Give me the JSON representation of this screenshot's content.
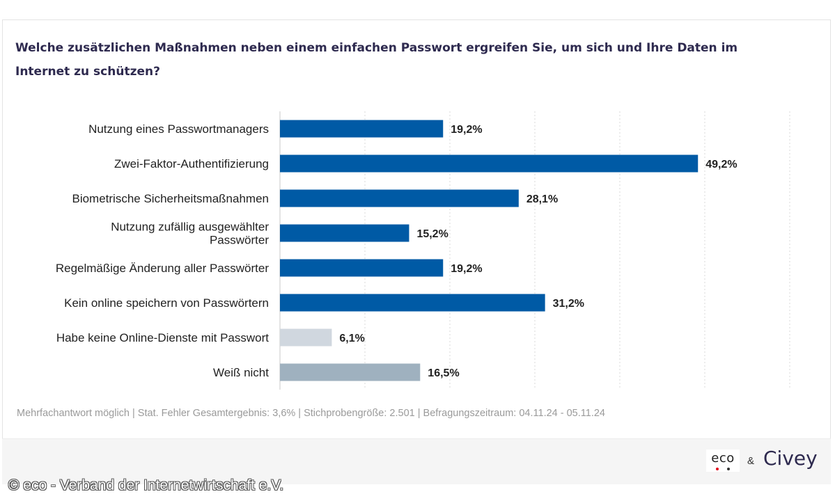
{
  "title": "Welche zusätzlichen Maßnahmen neben einem einfachen Passwort ergreifen Sie, um sich und Ihre Daten im Internet zu schützen?",
  "footnote": "Mehrfachantwort möglich | Stat. Fehler Gesamtergebnis: 3,6% | Stichprobengröße: 2.501 | Befragungszeitraum: 04.11.24 - 05.11.24",
  "footer": {
    "eco_logo_text": "eco",
    "ampersand": "&",
    "civey_logo_text": "Civey"
  },
  "copyright": "© eco - Verband der Internetwirtschaft e.V.",
  "colors": {
    "primary_bar": "#005aa5",
    "no_services_bar": "#d0d7df",
    "dont_know_bar": "#9fb1bf",
    "title": "#2e2a4f",
    "gridline": "#d8d8d8"
  },
  "chart_data": {
    "type": "bar",
    "orientation": "horizontal",
    "categories": [
      [
        "Nutzung eines Passwortmanagers"
      ],
      [
        "Zwei-Faktor-Authentifizierung"
      ],
      [
        "Biometrische Sicherheitsmaßnahmen"
      ],
      [
        "Nutzung zufällig ausgewählter",
        "Passwörter"
      ],
      [
        "Regelmäßige Änderung aller Passwörter"
      ],
      [
        "Kein online speichern von Passwörtern"
      ],
      [
        "Habe keine Online-Dienste mit Passwort"
      ],
      [
        "Weiß nicht"
      ]
    ],
    "values": [
      19.2,
      49.2,
      28.1,
      15.2,
      19.2,
      31.2,
      6.1,
      16.5
    ],
    "value_labels": [
      "19,2%",
      "49,2%",
      "28,1%",
      "15,2%",
      "19,2%",
      "31,2%",
      "6,1%",
      "16,5%"
    ],
    "bar_color_keys": [
      "primary_bar",
      "primary_bar",
      "primary_bar",
      "primary_bar",
      "primary_bar",
      "primary_bar",
      "no_services_bar",
      "dont_know_bar"
    ],
    "xlim": [
      0,
      60
    ],
    "grid": true
  }
}
